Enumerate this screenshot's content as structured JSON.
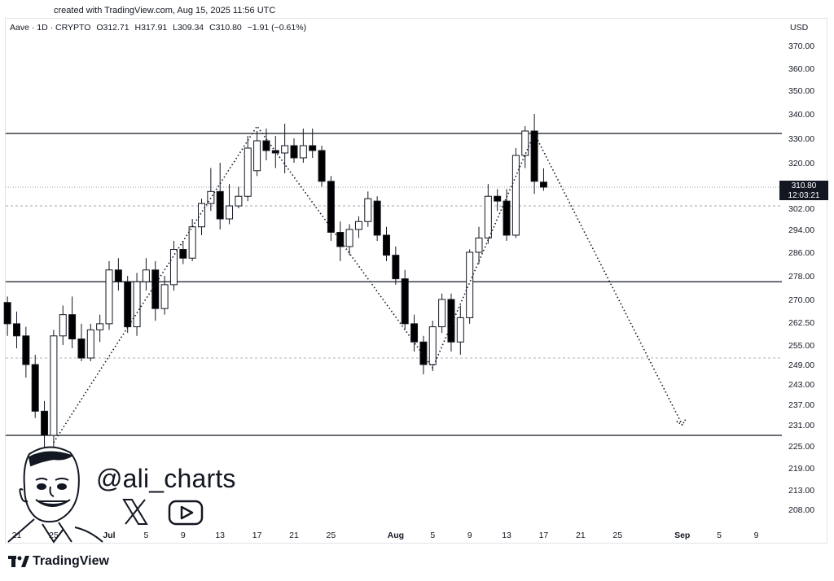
{
  "credit": "created with TradingView.com, Aug 15, 2025 11:56 UTC",
  "legend": {
    "symbol": "Aave · 1D · CRYPTO",
    "open": "O312.71",
    "high": "H317.91",
    "low": "L309.34",
    "close": "C310.80",
    "change": "−1.91 (−0.61%)"
  },
  "currency": "USD",
  "last_price": {
    "value": "310.80",
    "countdown": "12:03:21"
  },
  "handle": "@ali_charts",
  "brand": "TradingView",
  "icons": {
    "x": "x-logo-icon",
    "youtube": "youtube-icon",
    "avatar": "caricature-avatar",
    "brand": "tradingview-logo-icon"
  },
  "colors": {
    "candle_up_fill": "#ffffff",
    "candle_down_fill": "#000000",
    "line": "#000000"
  },
  "chart_data": {
    "type": "candlestick",
    "y_ticks": [
      370.0,
      360.0,
      350.0,
      340.0,
      330.0,
      320.0,
      310.8,
      302.0,
      294.0,
      286.0,
      278.0,
      270.0,
      262.5,
      255.0,
      249.0,
      243.0,
      237.0,
      231.0,
      225.0,
      219.0,
      213.0,
      208.0
    ],
    "y_tick_labels": [
      "370.00",
      "360.00",
      "350.00",
      "340.00",
      "330.00",
      "320.00",
      "",
      "302.00",
      "294.00",
      "286.00",
      "278.00",
      "270.00",
      "262.50",
      "255.00",
      "249.00",
      "243.00",
      "237.00",
      "231.00",
      "225.00",
      "219.00",
      "213.00",
      "208.00"
    ],
    "x_tick_labels": [
      "21",
      "25",
      "Jul",
      "5",
      "9",
      "13",
      "17",
      "21",
      "25",
      "Aug",
      "5",
      "9",
      "13",
      "17",
      "21",
      "25",
      "Sep",
      "5",
      "9"
    ],
    "x_tick_dates": [
      "2025-06-21",
      "2025-06-25",
      "2025-07-01",
      "2025-07-05",
      "2025-07-09",
      "2025-07-13",
      "2025-07-17",
      "2025-07-21",
      "2025-07-25",
      "2025-08-01",
      "2025-08-05",
      "2025-08-09",
      "2025-08-13",
      "2025-08-17",
      "2025-08-21",
      "2025-08-25",
      "2025-09-01",
      "2025-09-05",
      "2025-09-09"
    ],
    "candles": [
      {
        "d": "2025-06-20",
        "o": 269,
        "h": 271,
        "l": 258,
        "c": 262
      },
      {
        "d": "2025-06-21",
        "o": 262,
        "h": 266,
        "l": 254,
        "c": 258
      },
      {
        "d": "2025-06-22",
        "o": 258,
        "h": 261,
        "l": 245,
        "c": 249
      },
      {
        "d": "2025-06-23",
        "o": 249,
        "h": 252,
        "l": 233,
        "c": 235
      },
      {
        "d": "2025-06-24",
        "o": 235,
        "h": 238,
        "l": 222,
        "c": 228
      },
      {
        "d": "2025-06-25",
        "o": 228,
        "h": 260,
        "l": 224,
        "c": 258
      },
      {
        "d": "2025-06-26",
        "o": 258,
        "h": 268,
        "l": 255,
        "c": 265
      },
      {
        "d": "2025-06-27",
        "o": 265,
        "h": 271,
        "l": 254,
        "c": 257
      },
      {
        "d": "2025-06-28",
        "o": 257,
        "h": 262,
        "l": 250,
        "c": 251
      },
      {
        "d": "2025-06-29",
        "o": 251,
        "h": 262,
        "l": 250,
        "c": 260
      },
      {
        "d": "2025-06-30",
        "o": 260,
        "h": 265,
        "l": 256,
        "c": 262
      },
      {
        "d": "2025-07-01",
        "o": 262,
        "h": 283,
        "l": 260,
        "c": 280
      },
      {
        "d": "2025-07-02",
        "o": 280,
        "h": 284,
        "l": 273,
        "c": 276
      },
      {
        "d": "2025-07-03",
        "o": 276,
        "h": 278,
        "l": 259,
        "c": 261
      },
      {
        "d": "2025-07-04",
        "o": 261,
        "h": 279,
        "l": 258,
        "c": 276
      },
      {
        "d": "2025-07-05",
        "o": 276,
        "h": 284,
        "l": 273,
        "c": 280
      },
      {
        "d": "2025-07-06",
        "o": 280,
        "h": 283,
        "l": 263,
        "c": 267
      },
      {
        "d": "2025-07-07",
        "o": 267,
        "h": 278,
        "l": 265,
        "c": 275
      },
      {
        "d": "2025-07-08",
        "o": 275,
        "h": 290,
        "l": 273,
        "c": 287
      },
      {
        "d": "2025-07-09",
        "o": 287,
        "h": 290,
        "l": 282,
        "c": 284
      },
      {
        "d": "2025-07-10",
        "o": 284,
        "h": 298,
        "l": 283,
        "c": 295
      },
      {
        "d": "2025-07-11",
        "o": 295,
        "h": 306,
        "l": 292,
        "c": 304
      },
      {
        "d": "2025-07-12",
        "o": 304,
        "h": 318,
        "l": 301,
        "c": 309
      },
      {
        "d": "2025-07-13",
        "o": 309,
        "h": 320,
        "l": 294,
        "c": 298
      },
      {
        "d": "2025-07-14",
        "o": 298,
        "h": 312,
        "l": 296,
        "c": 303
      },
      {
        "d": "2025-07-15",
        "o": 303,
        "h": 311,
        "l": 302,
        "c": 307
      },
      {
        "d": "2025-07-16",
        "o": 307,
        "h": 331,
        "l": 305,
        "c": 326
      },
      {
        "d": "2025-07-17",
        "o": 317,
        "h": 333,
        "l": 315,
        "c": 329
      },
      {
        "d": "2025-07-18",
        "o": 329,
        "h": 334,
        "l": 321,
        "c": 325
      },
      {
        "d": "2025-07-19",
        "o": 325,
        "h": 331,
        "l": 318,
        "c": 324
      },
      {
        "d": "2025-07-20",
        "o": 324,
        "h": 336,
        "l": 316,
        "c": 327
      },
      {
        "d": "2025-07-21",
        "o": 327,
        "h": 330,
        "l": 320,
        "c": 322
      },
      {
        "d": "2025-07-22",
        "o": 322,
        "h": 334,
        "l": 320,
        "c": 327
      },
      {
        "d": "2025-07-23",
        "o": 327,
        "h": 334,
        "l": 322,
        "c": 325
      },
      {
        "d": "2025-07-24",
        "o": 325,
        "h": 327,
        "l": 311,
        "c": 313
      },
      {
        "d": "2025-07-25",
        "o": 313,
        "h": 315,
        "l": 290,
        "c": 293
      },
      {
        "d": "2025-07-26",
        "o": 293,
        "h": 297,
        "l": 283,
        "c": 288
      },
      {
        "d": "2025-07-27",
        "o": 288,
        "h": 296,
        "l": 285,
        "c": 294
      },
      {
        "d": "2025-07-28",
        "o": 294,
        "h": 299,
        "l": 291,
        "c": 297
      },
      {
        "d": "2025-07-29",
        "o": 297,
        "h": 309,
        "l": 295,
        "c": 306
      },
      {
        "d": "2025-07-30",
        "o": 305,
        "h": 307,
        "l": 290,
        "c": 292
      },
      {
        "d": "2025-07-31",
        "o": 292,
        "h": 295,
        "l": 283,
        "c": 285
      },
      {
        "d": "2025-08-01",
        "o": 285,
        "h": 288,
        "l": 275,
        "c": 277
      },
      {
        "d": "2025-08-02",
        "o": 277,
        "h": 280,
        "l": 260,
        "c": 262
      },
      {
        "d": "2025-08-03",
        "o": 262,
        "h": 265,
        "l": 253,
        "c": 256
      },
      {
        "d": "2025-08-04",
        "o": 256,
        "h": 258,
        "l": 246,
        "c": 249
      },
      {
        "d": "2025-08-05",
        "o": 249,
        "h": 263,
        "l": 247,
        "c": 261
      },
      {
        "d": "2025-08-06",
        "o": 261,
        "h": 272,
        "l": 259,
        "c": 270
      },
      {
        "d": "2025-08-07",
        "o": 270,
        "h": 272,
        "l": 253,
        "c": 256
      },
      {
        "d": "2025-08-08",
        "o": 256,
        "h": 268,
        "l": 252,
        "c": 264
      },
      {
        "d": "2025-08-09",
        "o": 264,
        "h": 287,
        "l": 262,
        "c": 286
      },
      {
        "d": "2025-08-10",
        "o": 286,
        "h": 295,
        "l": 282,
        "c": 291
      },
      {
        "d": "2025-08-11",
        "o": 291,
        "h": 312,
        "l": 289,
        "c": 307
      },
      {
        "d": "2025-08-12",
        "o": 307,
        "h": 310,
        "l": 301,
        "c": 305
      },
      {
        "d": "2025-08-13",
        "o": 305,
        "h": 310,
        "l": 290,
        "c": 292
      },
      {
        "d": "2025-08-14",
        "o": 292,
        "h": 326,
        "l": 291,
        "c": 323
      },
      {
        "d": "2025-08-15",
        "o": 323,
        "h": 335,
        "l": 318,
        "c": 333
      },
      {
        "d": "2025-08-16",
        "o": 333,
        "h": 340,
        "l": 308,
        "c": 313
      },
      {
        "d": "2025-08-17",
        "o": 312.71,
        "h": 317.91,
        "l": 309.34,
        "c": 310.8
      }
    ],
    "horizontal_lines": [
      {
        "price": 332,
        "style": "solid"
      },
      {
        "price": 276,
        "style": "solid"
      },
      {
        "price": 228,
        "style": "solid"
      },
      {
        "price": 303,
        "style": "dashed"
      },
      {
        "price": 251,
        "style": "dashed"
      }
    ],
    "projection_path": [
      {
        "d": "2025-06-25",
        "p": 226
      },
      {
        "d": "2025-07-17",
        "p": 335
      },
      {
        "d": "2025-08-05",
        "p": 248
      },
      {
        "d": "2025-08-16",
        "p": 332
      },
      {
        "d": "2025-09-01",
        "p": 231
      }
    ],
    "grid": false,
    "legend_position": "top-left"
  }
}
